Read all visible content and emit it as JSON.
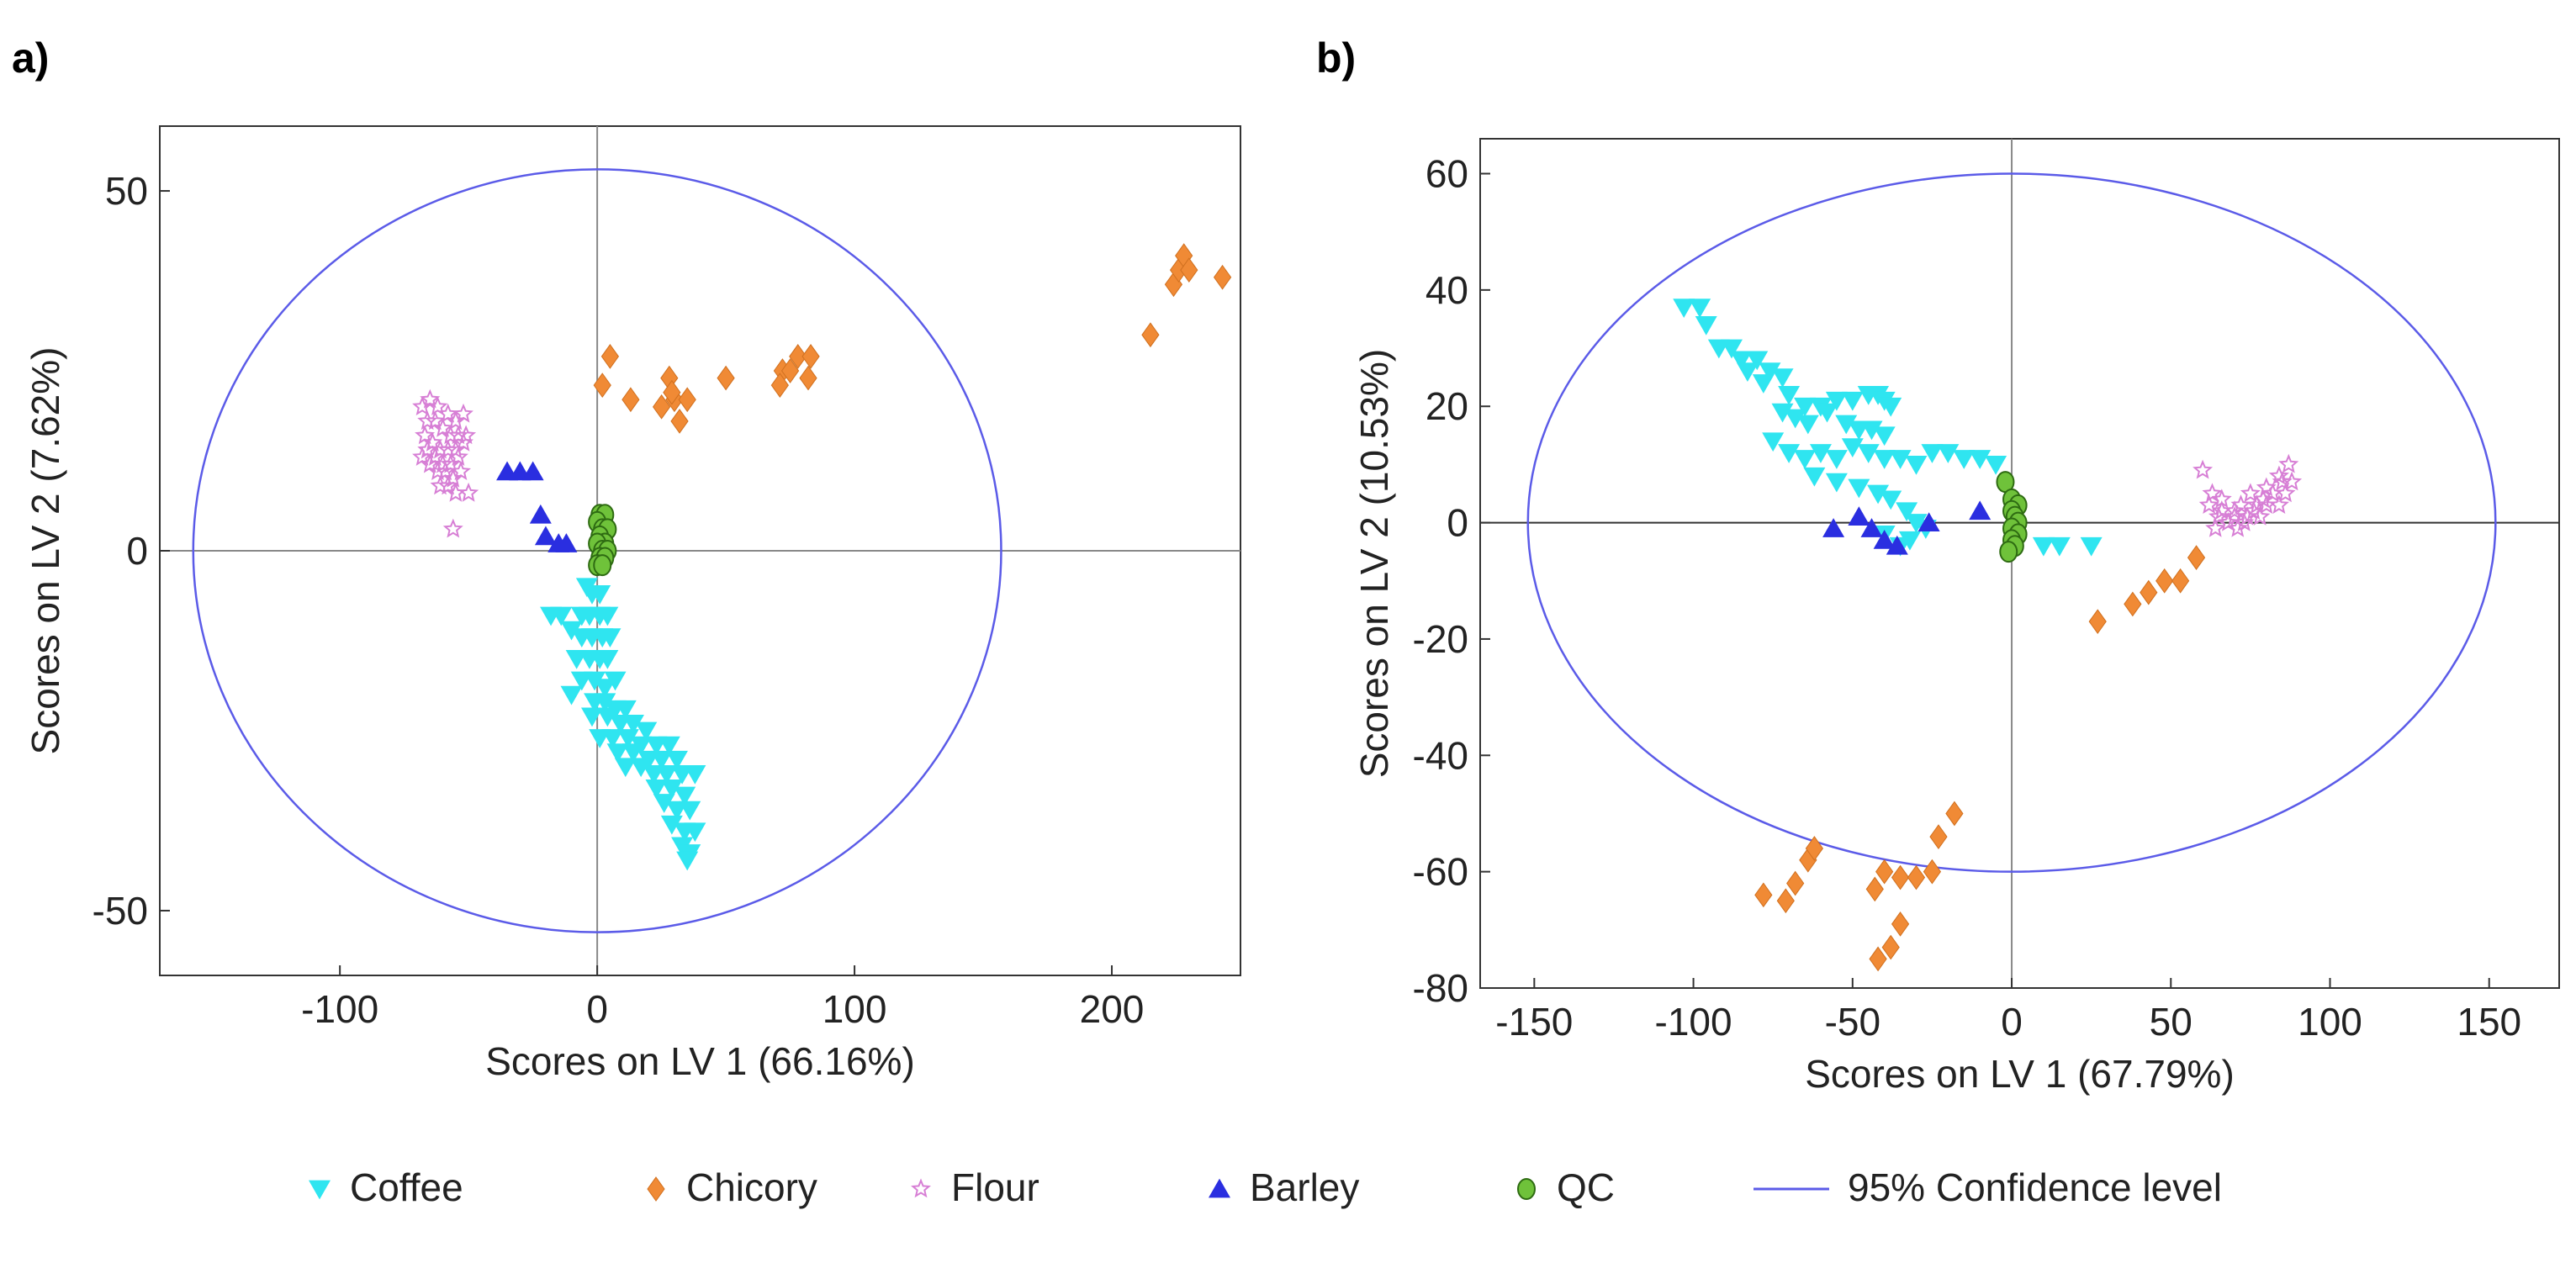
{
  "chart_data": [
    {
      "panel": "a)",
      "type": "scatter",
      "xlabel": "Scores on LV 1 (66.16%)",
      "ylabel": "Scores on LV 2 (7.62%)",
      "xlim": [
        -170,
        250
      ],
      "ylim": [
        -59,
        59
      ],
      "xticks": [
        -100,
        0,
        100,
        200
      ],
      "yticks": [
        -50,
        0,
        50
      ],
      "ellipse": {
        "cx": 0,
        "cy": 0,
        "rx": 157,
        "ry": 53
      },
      "series": [
        {
          "name": "Coffee",
          "points": [
            [
              -4,
              -5
            ],
            [
              -2,
              -6
            ],
            [
              1,
              -6
            ],
            [
              -6,
              -9
            ],
            [
              -3,
              -9
            ],
            [
              1,
              -9
            ],
            [
              4,
              -9
            ],
            [
              -18,
              -9
            ],
            [
              -14,
              -9
            ],
            [
              -10,
              -11
            ],
            [
              -6,
              -12
            ],
            [
              -2,
              -12
            ],
            [
              2,
              -12
            ],
            [
              5,
              -12
            ],
            [
              -8,
              -15
            ],
            [
              -3,
              -15
            ],
            [
              1,
              -15
            ],
            [
              4,
              -15
            ],
            [
              -6,
              -18
            ],
            [
              -1,
              -18
            ],
            [
              3,
              -19
            ],
            [
              7,
              -18
            ],
            [
              -10,
              -20
            ],
            [
              -1,
              -21
            ],
            [
              3,
              -21
            ],
            [
              7,
              -22
            ],
            [
              11,
              -22
            ],
            [
              -2,
              -23
            ],
            [
              4,
              -23
            ],
            [
              9,
              -24
            ],
            [
              14,
              -24
            ],
            [
              19,
              -25
            ],
            [
              1,
              -26
            ],
            [
              6,
              -26
            ],
            [
              12,
              -26
            ],
            [
              17,
              -27
            ],
            [
              23,
              -27
            ],
            [
              28,
              -27
            ],
            [
              8,
              -28
            ],
            [
              14,
              -28
            ],
            [
              20,
              -29
            ],
            [
              25,
              -29
            ],
            [
              31,
              -29
            ],
            [
              11,
              -30
            ],
            [
              17,
              -30
            ],
            [
              22,
              -31
            ],
            [
              27,
              -31
            ],
            [
              33,
              -31
            ],
            [
              38,
              -31
            ],
            [
              23,
              -33
            ],
            [
              29,
              -33
            ],
            [
              34,
              -34
            ],
            [
              26,
              -35
            ],
            [
              31,
              -36
            ],
            [
              36,
              -36
            ],
            [
              29,
              -38
            ],
            [
              34,
              -39
            ],
            [
              38,
              -39
            ],
            [
              33,
              -41
            ],
            [
              36,
              -42
            ],
            [
              35,
              -43
            ]
          ]
        },
        {
          "name": "Chicory",
          "points": [
            [
              5,
              27
            ],
            [
              2,
              23
            ],
            [
              13,
              21
            ],
            [
              25,
              20
            ],
            [
              30,
              21
            ],
            [
              35,
              21
            ],
            [
              32,
              18
            ],
            [
              28,
              24
            ],
            [
              29,
              22
            ],
            [
              50,
              24
            ],
            [
              72,
              25
            ],
            [
              75,
              25
            ],
            [
              71,
              23
            ],
            [
              78,
              27
            ],
            [
              82,
              24
            ],
            [
              83,
              27
            ],
            [
              215,
              30
            ],
            [
              224,
              37
            ],
            [
              226,
              39
            ],
            [
              228,
              41
            ],
            [
              230,
              39
            ],
            [
              243,
              38
            ]
          ]
        },
        {
          "name": "Flour",
          "points": [
            [
              -68,
              20
            ],
            [
              -65,
              21
            ],
            [
              -62,
              20
            ],
            [
              -58,
              19
            ],
            [
              -55,
              18
            ],
            [
              -52,
              19
            ],
            [
              -66,
              18
            ],
            [
              -63,
              18
            ],
            [
              -60,
              17
            ],
            [
              -57,
              16
            ],
            [
              -54,
              16
            ],
            [
              -51,
              16
            ],
            [
              -67,
              16
            ],
            [
              -64,
              15
            ],
            [
              -61,
              14
            ],
            [
              -58,
              14
            ],
            [
              -55,
              14
            ],
            [
              -52,
              15
            ],
            [
              -66,
              14
            ],
            [
              -63,
              13
            ],
            [
              -60,
              12
            ],
            [
              -57,
              12
            ],
            [
              -54,
              13
            ],
            [
              -68,
              13
            ],
            [
              -65,
              12
            ],
            [
              -62,
              11
            ],
            [
              -59,
              11
            ],
            [
              -56,
              10
            ],
            [
              -53,
              11
            ],
            [
              -61,
              9
            ],
            [
              -58,
              9
            ],
            [
              -55,
              8
            ],
            [
              -50,
              8
            ],
            [
              -56,
              3
            ]
          ]
        },
        {
          "name": "Barley",
          "points": [
            [
              -35,
              11
            ],
            [
              -30,
              11
            ],
            [
              -25,
              11
            ],
            [
              -22,
              5
            ],
            [
              -20,
              2
            ],
            [
              -15,
              1
            ],
            [
              -12,
              1
            ]
          ]
        },
        {
          "name": "QC",
          "points": [
            [
              1,
              5
            ],
            [
              3,
              5
            ],
            [
              0,
              4
            ],
            [
              2,
              3
            ],
            [
              4,
              3
            ],
            [
              1,
              2
            ],
            [
              3,
              1
            ],
            [
              0,
              1
            ],
            [
              2,
              0
            ],
            [
              4,
              0
            ],
            [
              1,
              -1
            ],
            [
              3,
              -1
            ],
            [
              0,
              -2
            ],
            [
              2,
              -2
            ]
          ]
        }
      ]
    },
    {
      "panel": "b)",
      "type": "scatter",
      "xlabel": "Scores on LV 1 (67.79%)",
      "ylabel": "Scores on LV 2 (10.53%)",
      "xlim": [
        -167,
        172
      ],
      "ylim": [
        -80,
        66
      ],
      "xticks": [
        -150,
        -100,
        -50,
        0,
        50,
        100,
        150
      ],
      "yticks": [
        -80,
        -60,
        -40,
        -20,
        0,
        20,
        40,
        60
      ],
      "ellipse": {
        "cx": 0,
        "cy": 0,
        "rx": 152,
        "ry": 60
      },
      "series": [
        {
          "name": "Coffee",
          "points": [
            [
              -103,
              37
            ],
            [
              -98,
              37
            ],
            [
              -96,
              34
            ],
            [
              -92,
              30
            ],
            [
              -85,
              28
            ],
            [
              -80,
              28
            ],
            [
              -76,
              26
            ],
            [
              -72,
              25
            ],
            [
              -88,
              30
            ],
            [
              -83,
              26
            ],
            [
              -78,
              24
            ],
            [
              -70,
              22
            ],
            [
              -65,
              20
            ],
            [
              -60,
              20
            ],
            [
              -55,
              21
            ],
            [
              -50,
              21
            ],
            [
              -45,
              22
            ],
            [
              -42,
              22
            ],
            [
              -40,
              21
            ],
            [
              -38,
              20
            ],
            [
              -72,
              19
            ],
            [
              -68,
              18
            ],
            [
              -64,
              17
            ],
            [
              -58,
              19
            ],
            [
              -52,
              17
            ],
            [
              -48,
              16
            ],
            [
              -44,
              16
            ],
            [
              -40,
              15
            ],
            [
              -75,
              14
            ],
            [
              -70,
              12
            ],
            [
              -65,
              11
            ],
            [
              -60,
              12
            ],
            [
              -55,
              11
            ],
            [
              -50,
              13
            ],
            [
              -45,
              12
            ],
            [
              -40,
              11
            ],
            [
              -35,
              11
            ],
            [
              -30,
              10
            ],
            [
              -25,
              12
            ],
            [
              -20,
              12
            ],
            [
              -15,
              11
            ],
            [
              -10,
              11
            ],
            [
              -5,
              10
            ],
            [
              -62,
              8
            ],
            [
              -55,
              7
            ],
            [
              -48,
              6
            ],
            [
              -42,
              5
            ],
            [
              -38,
              4
            ],
            [
              -33,
              2
            ],
            [
              -30,
              0
            ],
            [
              -27,
              -1
            ],
            [
              -32,
              -3
            ],
            [
              -35,
              -4
            ],
            [
              -40,
              -2
            ],
            [
              10,
              -4
            ],
            [
              15,
              -4
            ],
            [
              25,
              -4
            ]
          ]
        },
        {
          "name": "Chicory",
          "points": [
            [
              27,
              -17
            ],
            [
              38,
              -14
            ],
            [
              43,
              -12
            ],
            [
              48,
              -10
            ],
            [
              53,
              -10
            ],
            [
              58,
              -6
            ],
            [
              -78,
              -64
            ],
            [
              -71,
              -65
            ],
            [
              -68,
              -62
            ],
            [
              -64,
              -58
            ],
            [
              -62,
              -56
            ],
            [
              -43,
              -63
            ],
            [
              -40,
              -60
            ],
            [
              -35,
              -61
            ],
            [
              -30,
              -61
            ],
            [
              -25,
              -60
            ],
            [
              -23,
              -54
            ],
            [
              -18,
              -50
            ],
            [
              -35,
              -69
            ],
            [
              -38,
              -73
            ],
            [
              -42,
              -75
            ]
          ]
        },
        {
          "name": "Flour",
          "points": [
            [
              60,
              9
            ],
            [
              63,
              5
            ],
            [
              66,
              2
            ],
            [
              70,
              1
            ],
            [
              73,
              0
            ],
            [
              76,
              2
            ],
            [
              79,
              4
            ],
            [
              82,
              5
            ],
            [
              85,
              7
            ],
            [
              87,
              10
            ],
            [
              84,
              8
            ],
            [
              80,
              6
            ],
            [
              77,
              3
            ],
            [
              74,
              1
            ],
            [
              71,
              -1
            ],
            [
              68,
              0
            ],
            [
              65,
              1
            ],
            [
              62,
              3
            ],
            [
              66,
              4
            ],
            [
              72,
              3
            ],
            [
              78,
              1
            ],
            [
              84,
              3
            ],
            [
              86,
              5
            ],
            [
              88,
              7
            ],
            [
              75,
              5
            ],
            [
              80,
              3
            ],
            [
              70,
              2
            ],
            [
              64,
              -1
            ]
          ]
        },
        {
          "name": "Barley",
          "points": [
            [
              -48,
              1
            ],
            [
              -44,
              -1
            ],
            [
              -40,
              -3
            ],
            [
              -36,
              -4
            ],
            [
              -26,
              0
            ],
            [
              -10,
              2
            ],
            [
              -56,
              -1
            ]
          ]
        },
        {
          "name": "QC",
          "points": [
            [
              -2,
              7
            ],
            [
              0,
              4
            ],
            [
              2,
              3
            ],
            [
              0,
              2
            ],
            [
              1,
              1
            ],
            [
              2,
              0
            ],
            [
              0,
              -1
            ],
            [
              2,
              -2
            ],
            [
              0,
              -3
            ],
            [
              1,
              -4
            ],
            [
              -1,
              -5
            ]
          ]
        }
      ]
    }
  ],
  "legend": [
    {
      "name": "Coffee",
      "label": "Coffee",
      "marker": "triangle-down",
      "color": "#2fe5f0"
    },
    {
      "name": "Chicory",
      "label": "Chicory",
      "marker": "diamond",
      "color": "#f08a35"
    },
    {
      "name": "Flour",
      "label": "Flour",
      "marker": "star",
      "color": "#d77fd5"
    },
    {
      "name": "Barley",
      "label": "Barley",
      "marker": "triangle-up",
      "color": "#2a2ee0"
    },
    {
      "name": "QC",
      "label": "QC",
      "marker": "circle",
      "color": "#6fc23a"
    },
    {
      "name": "95% Confidence level",
      "label": "95% Confidence level",
      "marker": "line",
      "color": "#5b5be8"
    }
  ]
}
